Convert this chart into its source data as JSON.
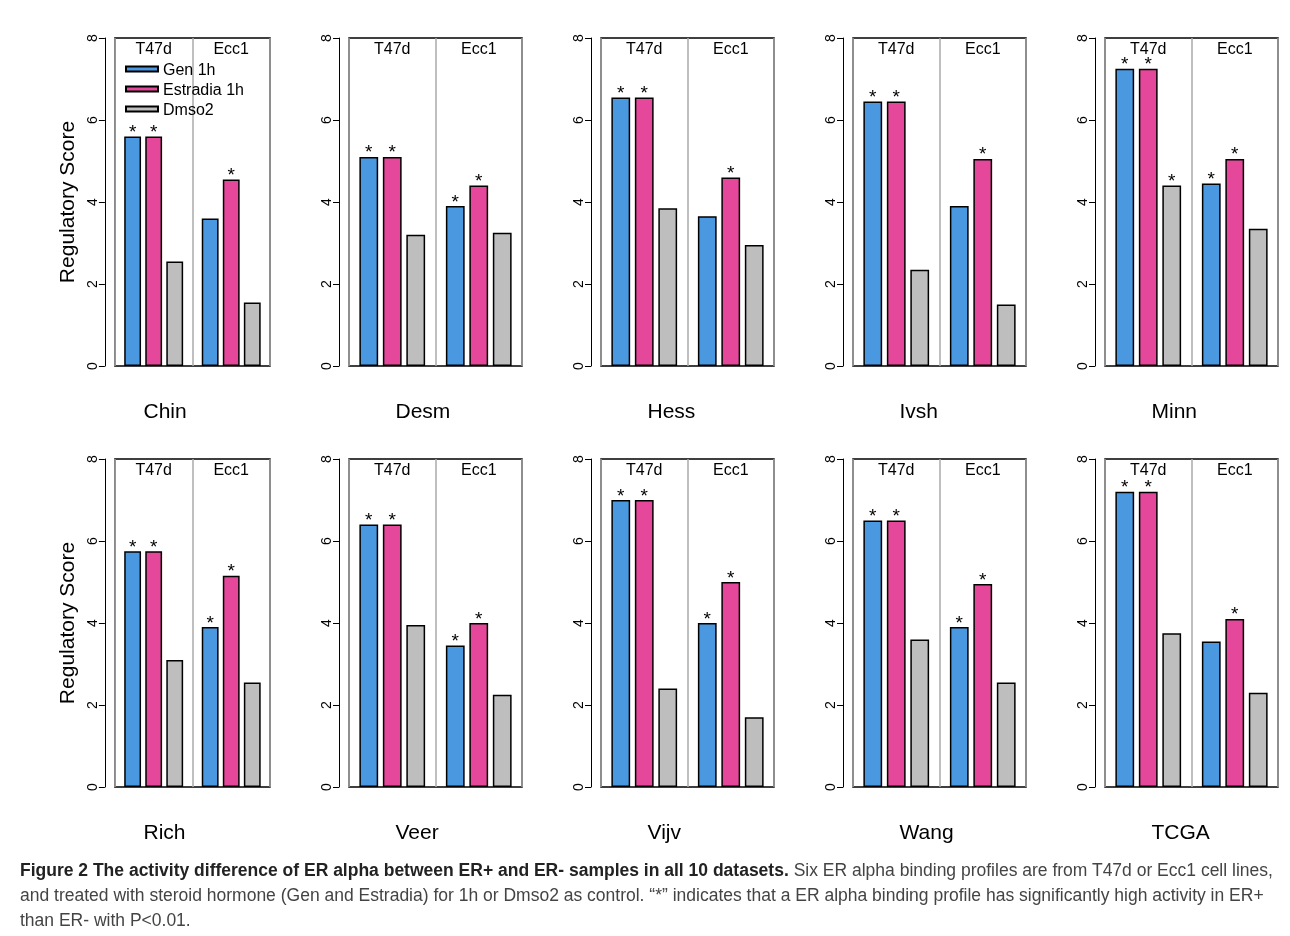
{
  "chart_data": [
    {
      "type": "bar",
      "xlabel": "Chin",
      "ylabel": "Regulatory Score",
      "categories": [
        "T47d",
        "Ecc1"
      ],
      "ylim": [
        0,
        8
      ],
      "yticks": [
        0,
        2,
        4,
        6,
        8
      ],
      "grid": "x",
      "legend": "top left",
      "annotations": [
        "Figure 2 The activity difference of ER alpha between ER+ and ER- samples in all 10 datasets.",
        "Six ER alpha binding profiles are from T47d or Ecc1 cell lines, and treated with steroid hormone (Gen and Estradia) for 1h or Dmso2 as control. “*” indicates that a ER alpha binding profile has significantly high activity in ER+ than ER- with P<0.01."
      ],
      "series": [
        {
          "name": "Gen 1h",
          "color": "#4a98e0",
          "values": [
            5.6,
            3.6
          ],
          "value_labels": [
            "*",
            null
          ]
        },
        {
          "name": "Estradia 1h",
          "color": "#e5489a",
          "values": [
            5.6,
            4.55
          ],
          "value_labels": [
            "*",
            "*"
          ]
        },
        {
          "name": "Dmso2",
          "color": "#bebebe",
          "values": [
            2.55,
            1.55
          ],
          "value_labels": [
            null,
            null
          ]
        }
      ]
    },
    {
      "type": "bar",
      "xlabel": "Desm",
      "categories": [
        "T47d",
        "Ecc1"
      ],
      "ylim": [
        0,
        8
      ],
      "yticks": [
        0,
        2,
        4,
        6,
        8
      ],
      "grid": "x",
      "series": [
        {
          "color": "#4a98e0",
          "values": [
            5.1,
            3.9
          ],
          "value_labels": [
            "*",
            "*"
          ]
        },
        {
          "color": "#e5489a",
          "values": [
            5.1,
            4.4
          ],
          "value_labels": [
            "*",
            "*"
          ]
        },
        {
          "color": "#bebebe",
          "values": [
            3.2,
            3.25
          ],
          "value_labels": [
            null,
            null
          ]
        }
      ]
    },
    {
      "type": "bar",
      "xlabel": "Hess",
      "categories": [
        "T47d",
        "Ecc1"
      ],
      "ylim": [
        0,
        8
      ],
      "yticks": [
        0,
        2,
        4,
        6,
        8
      ],
      "grid": "x",
      "series": [
        {
          "color": "#4a98e0",
          "values": [
            6.55,
            3.65
          ],
          "value_labels": [
            "*",
            null
          ]
        },
        {
          "color": "#e5489a",
          "values": [
            6.55,
            4.6
          ],
          "value_labels": [
            "*",
            "*"
          ]
        },
        {
          "color": "#bebebe",
          "values": [
            3.85,
            2.95
          ],
          "value_labels": [
            null,
            null
          ]
        }
      ]
    },
    {
      "type": "bar",
      "xlabel": "Ivsh",
      "categories": [
        "T47d",
        "Ecc1"
      ],
      "ylim": [
        0,
        8
      ],
      "yticks": [
        0,
        2,
        4,
        6,
        8
      ],
      "grid": "x",
      "series": [
        {
          "color": "#4a98e0",
          "values": [
            6.45,
            3.9
          ],
          "value_labels": [
            "*",
            null
          ]
        },
        {
          "color": "#e5489a",
          "values": [
            6.45,
            5.05
          ],
          "value_labels": [
            "*",
            "*"
          ]
        },
        {
          "color": "#bebebe",
          "values": [
            2.35,
            1.5
          ],
          "value_labels": [
            null,
            null
          ]
        }
      ]
    },
    {
      "type": "bar",
      "xlabel": "Minn",
      "categories": [
        "T47d",
        "Ecc1"
      ],
      "ylim": [
        0,
        8
      ],
      "yticks": [
        0,
        2,
        4,
        6,
        8
      ],
      "grid": "x",
      "series": [
        {
          "color": "#4a98e0",
          "values": [
            7.25,
            4.45
          ],
          "value_labels": [
            "*",
            "*"
          ]
        },
        {
          "color": "#e5489a",
          "values": [
            7.25,
            5.05
          ],
          "value_labels": [
            "*",
            "*"
          ]
        },
        {
          "color": "#bebebe",
          "values": [
            4.4,
            3.35
          ],
          "value_labels": [
            "*",
            null
          ]
        }
      ]
    },
    {
      "type": "bar",
      "xlabel": "Rich",
      "ylabel": "Regulatory Score",
      "categories": [
        "T47d",
        "Ecc1"
      ],
      "ylim": [
        0,
        8
      ],
      "yticks": [
        0,
        2,
        4,
        6,
        8
      ],
      "grid": "x",
      "series": [
        {
          "color": "#4a98e0",
          "values": [
            5.75,
            3.9
          ],
          "value_labels": [
            "*",
            "*"
          ]
        },
        {
          "color": "#e5489a",
          "values": [
            5.75,
            5.15
          ],
          "value_labels": [
            "*",
            "*"
          ]
        },
        {
          "color": "#bebebe",
          "values": [
            3.1,
            2.55
          ],
          "value_labels": [
            null,
            null
          ]
        }
      ]
    },
    {
      "type": "bar",
      "xlabel": "Veer",
      "categories": [
        "T47d",
        "Ecc1"
      ],
      "ylim": [
        0,
        8
      ],
      "yticks": [
        0,
        2,
        4,
        6,
        8
      ],
      "grid": "x",
      "series": [
        {
          "color": "#4a98e0",
          "values": [
            6.4,
            3.45
          ],
          "value_labels": [
            "*",
            "*"
          ]
        },
        {
          "color": "#e5489a",
          "values": [
            6.4,
            4.0
          ],
          "value_labels": [
            "*",
            "*"
          ]
        },
        {
          "color": "#bebebe",
          "values": [
            3.95,
            2.25
          ],
          "value_labels": [
            null,
            null
          ]
        }
      ]
    },
    {
      "type": "bar",
      "xlabel": "Vijv",
      "categories": [
        "T47d",
        "Ecc1"
      ],
      "ylim": [
        0,
        8
      ],
      "yticks": [
        0,
        2,
        4,
        6,
        8
      ],
      "grid": "x",
      "series": [
        {
          "color": "#4a98e0",
          "values": [
            7.0,
            4.0
          ],
          "value_labels": [
            "*",
            "*"
          ]
        },
        {
          "color": "#e5489a",
          "values": [
            7.0,
            5.0
          ],
          "value_labels": [
            "*",
            "*"
          ]
        },
        {
          "color": "#bebebe",
          "values": [
            2.4,
            1.7
          ],
          "value_labels": [
            null,
            null
          ]
        }
      ]
    },
    {
      "type": "bar",
      "xlabel": "Wang",
      "categories": [
        "T47d",
        "Ecc1"
      ],
      "ylim": [
        0,
        8
      ],
      "yticks": [
        0,
        2,
        4,
        6,
        8
      ],
      "grid": "x",
      "series": [
        {
          "color": "#4a98e0",
          "values": [
            6.5,
            3.9
          ],
          "value_labels": [
            "*",
            "*"
          ]
        },
        {
          "color": "#e5489a",
          "values": [
            6.5,
            4.95
          ],
          "value_labels": [
            "*",
            "*"
          ]
        },
        {
          "color": "#bebebe",
          "values": [
            3.6,
            2.55
          ],
          "value_labels": [
            null,
            null
          ]
        }
      ]
    },
    {
      "type": "bar",
      "xlabel": "TCGA",
      "categories": [
        "T47d",
        "Ecc1"
      ],
      "ylim": [
        0,
        8
      ],
      "yticks": [
        0,
        2,
        4,
        6,
        8
      ],
      "grid": "x",
      "series": [
        {
          "color": "#4a98e0",
          "values": [
            7.2,
            3.55
          ],
          "value_labels": [
            "*",
            null
          ]
        },
        {
          "color": "#e5489a",
          "values": [
            7.2,
            4.1
          ],
          "value_labels": [
            "*",
            "*"
          ]
        },
        {
          "color": "#bebebe",
          "values": [
            3.75,
            2.3
          ],
          "value_labels": [
            null,
            null
          ]
        }
      ]
    }
  ]
}
